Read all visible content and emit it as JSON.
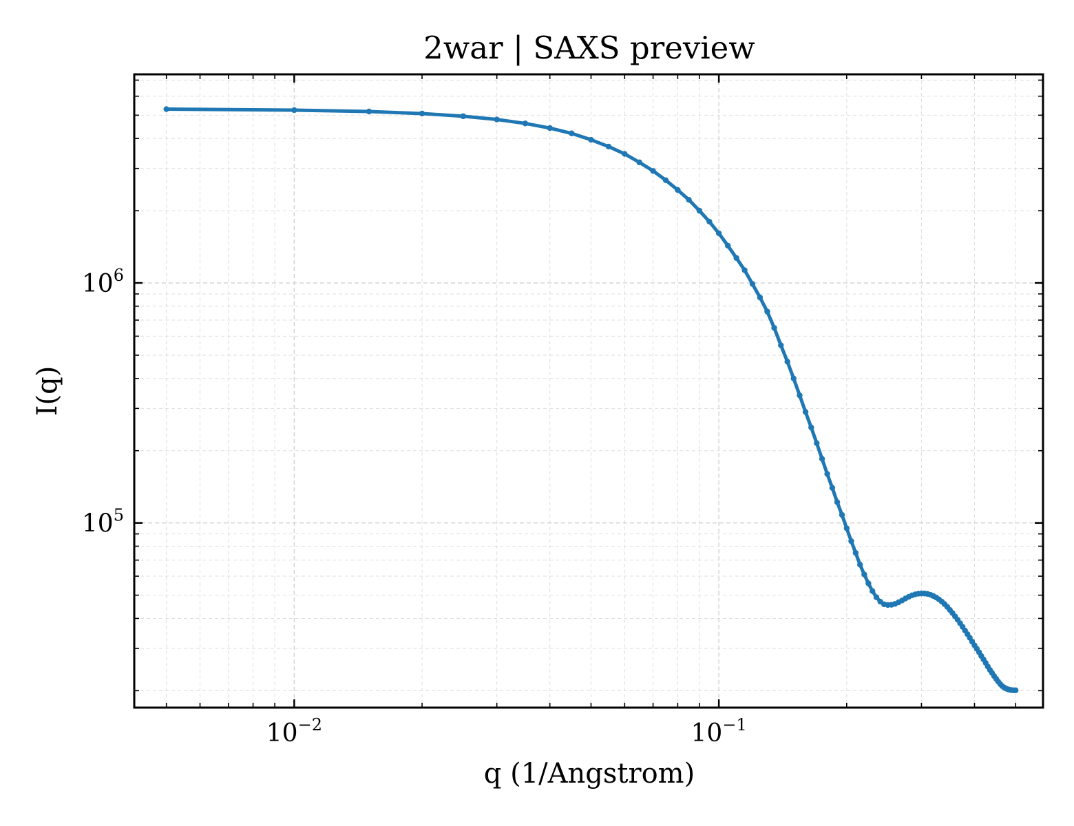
{
  "chart_data": {
    "type": "line",
    "title": "2war | SAXS preview",
    "xlabel": "q (1/Angstrom)",
    "ylabel": "I(q)",
    "xscale": "log",
    "yscale": "log",
    "xlim": [
      0.0042,
      0.58
    ],
    "ylim": [
      17000,
      7400000
    ],
    "grid": true,
    "ticks_direction": "in",
    "x_ticks": [
      {
        "value": 0.01,
        "base": "10",
        "exp": "−2"
      },
      {
        "value": 0.1,
        "base": "10",
        "exp": "−1"
      }
    ],
    "y_ticks": [
      {
        "value": 100000,
        "base": "10",
        "exp": "5"
      },
      {
        "value": 1000000,
        "base": "10",
        "exp": "6"
      }
    ],
    "series": [
      {
        "color": "#1f77b4",
        "marker": "circle",
        "x": [
          0.005,
          0.01,
          0.015,
          0.02,
          0.025,
          0.03,
          0.035,
          0.04,
          0.045,
          0.05,
          0.055,
          0.06,
          0.065,
          0.07,
          0.075,
          0.08,
          0.085,
          0.09,
          0.095,
          0.1,
          0.105,
          0.11,
          0.115,
          0.12,
          0.125,
          0.13,
          0.135,
          0.14,
          0.145,
          0.15,
          0.155,
          0.16,
          0.165,
          0.17,
          0.175,
          0.18,
          0.185,
          0.19,
          0.195,
          0.2,
          0.205,
          0.21,
          0.215,
          0.22,
          0.225,
          0.23,
          0.235,
          0.24,
          0.245,
          0.25,
          0.255,
          0.26,
          0.265,
          0.27,
          0.275,
          0.28,
          0.285,
          0.29,
          0.295,
          0.3,
          0.305,
          0.31,
          0.315,
          0.32,
          0.325,
          0.33,
          0.335,
          0.34,
          0.345,
          0.35,
          0.355,
          0.36,
          0.365,
          0.37,
          0.375,
          0.38,
          0.385,
          0.39,
          0.395,
          0.4,
          0.405,
          0.41,
          0.415,
          0.42,
          0.425,
          0.43,
          0.435,
          0.44,
          0.445,
          0.45,
          0.455,
          0.46,
          0.465,
          0.47,
          0.475,
          0.48,
          0.485,
          0.49,
          0.495,
          0.5
        ],
        "y": [
          5300000,
          5250000,
          5180000,
          5080000,
          4950000,
          4800000,
          4620000,
          4420000,
          4200000,
          3950000,
          3700000,
          3450000,
          3180000,
          2930000,
          2680000,
          2440000,
          2220000,
          2000000,
          1800000,
          1610000,
          1430000,
          1270000,
          1130000,
          990000,
          870000,
          760000,
          650000,
          550000,
          470000,
          400000,
          340000,
          290000,
          250000,
          215000,
          185000,
          160000,
          140000,
          122000,
          108000,
          95000,
          84000,
          75000,
          67000,
          61000,
          56000,
          52000,
          49000,
          47000,
          45800,
          45500,
          45600,
          46000,
          46700,
          47500,
          48400,
          49200,
          49900,
          50400,
          50700,
          50800,
          50800,
          50600,
          50200,
          49600,
          48900,
          48000,
          47000,
          45900,
          44700,
          43400,
          42100,
          40800,
          39500,
          38200,
          36900,
          35600,
          34400,
          33200,
          32000,
          30900,
          29900,
          28900,
          27900,
          27000,
          26100,
          25200,
          24400,
          23700,
          23000,
          22400,
          21800,
          21300,
          20900,
          20600,
          20400,
          20250,
          20150,
          20100,
          20080,
          20070
        ]
      }
    ]
  }
}
